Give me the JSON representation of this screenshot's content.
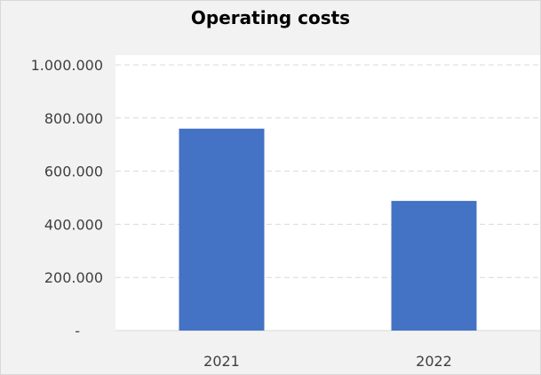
{
  "chart_data": {
    "type": "bar",
    "title": "Operating costs",
    "categories": [
      "2021",
      "2022"
    ],
    "series": [
      {
        "values": [
          760000,
          488000
        ],
        "color": "#4472c4"
      }
    ],
    "xlabel": "",
    "ylabel": "",
    "ylim": [
      0,
      1000000
    ],
    "yticks": [
      0,
      200000,
      400000,
      600000,
      800000,
      1000000
    ],
    "ytick_labels": [
      "-",
      "200.000",
      "400.000",
      "600.000",
      "800.000",
      "1.000.000"
    ],
    "grid": true,
    "legend": "none"
  }
}
